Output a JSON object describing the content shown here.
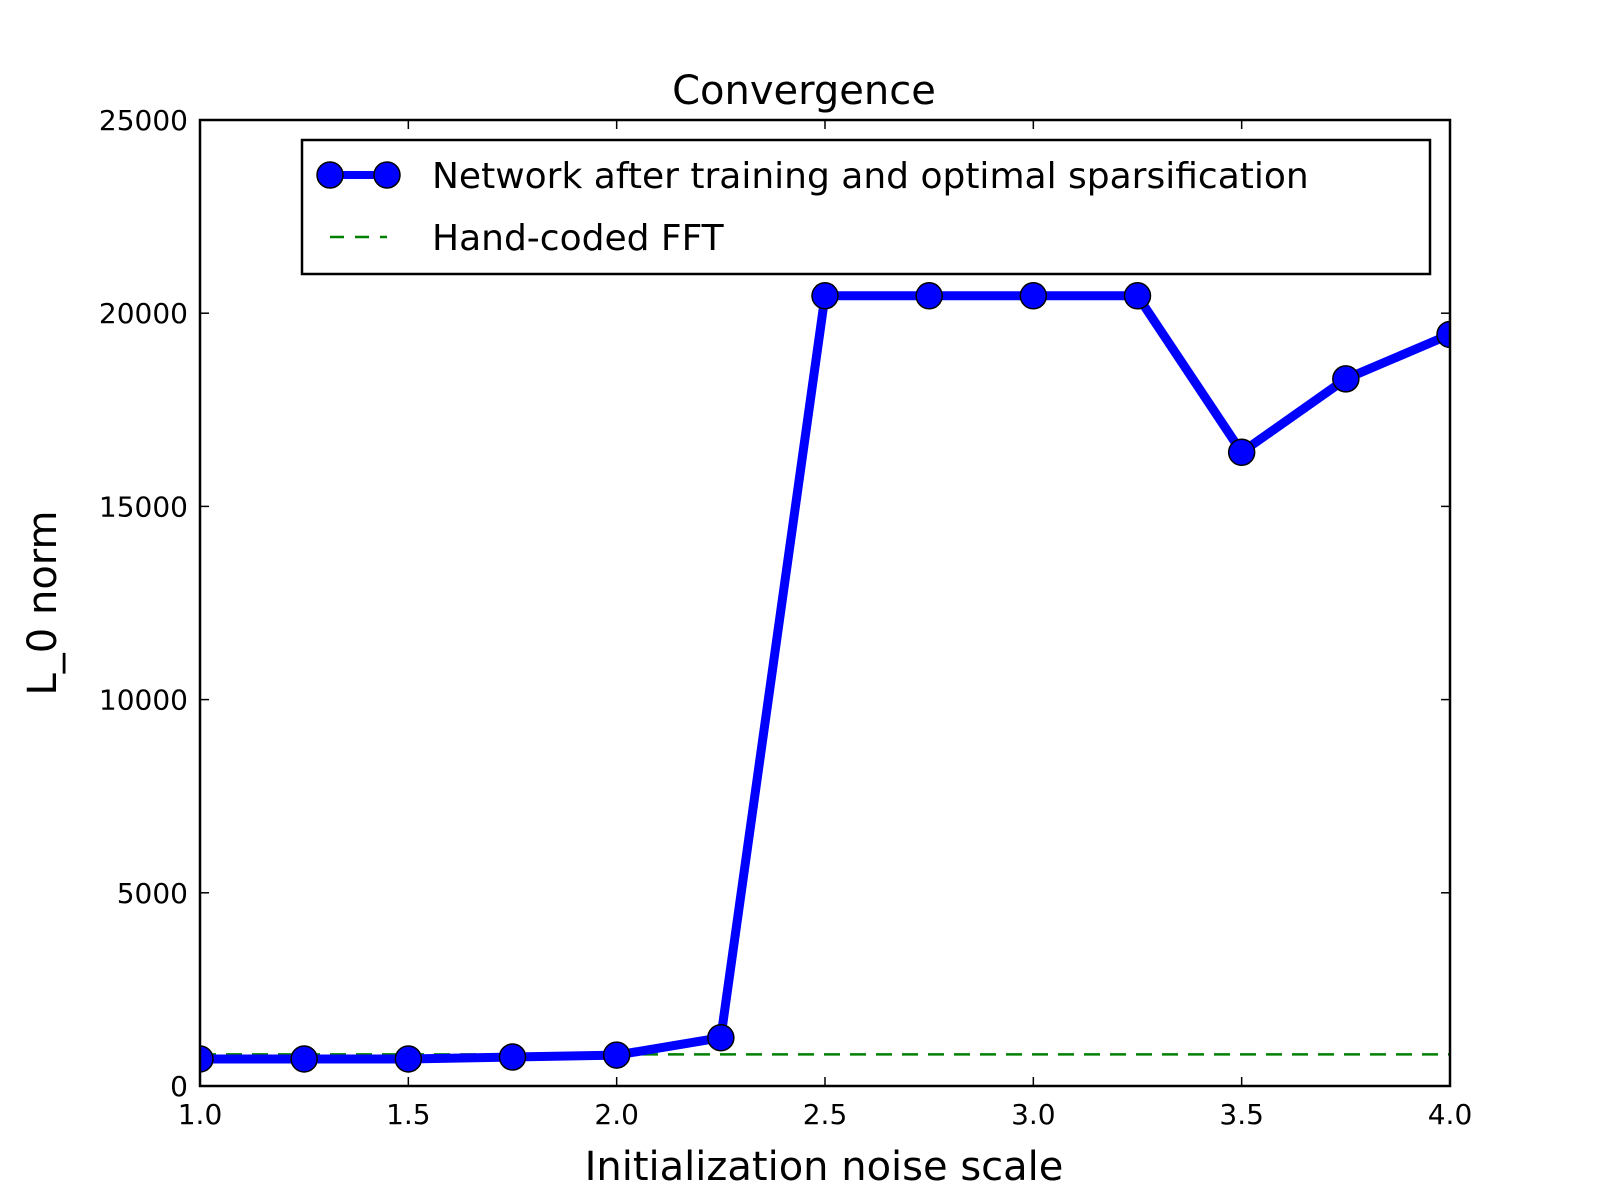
{
  "chart_data": {
    "type": "line",
    "title": "Convergence",
    "xlabel": "Initialization noise scale",
    "ylabel": "L_0 norm",
    "xlim": [
      1.0,
      4.0
    ],
    "ylim": [
      0,
      25000
    ],
    "xticks": [
      "1.0",
      "1.5",
      "2.0",
      "2.5",
      "3.0",
      "3.5",
      "4.0"
    ],
    "yticks": [
      "0",
      "5000",
      "10000",
      "15000",
      "20000",
      "25000"
    ],
    "grid": false,
    "legend_position": "top-right",
    "series": [
      {
        "name": "Network after training and optimal sparsification",
        "color": "#0000ff",
        "style": "solid-with-markers",
        "x": [
          1.0,
          1.25,
          1.5,
          1.75,
          2.0,
          2.25,
          2.5,
          2.75,
          3.0,
          3.25,
          3.5,
          3.75,
          4.0
        ],
        "y": [
          700,
          700,
          700,
          750,
          800,
          1250,
          20450,
          20450,
          20450,
          20450,
          16400,
          18300,
          19450
        ]
      },
      {
        "name": "Hand-coded FFT",
        "color": "#008000",
        "style": "dashed",
        "x": [
          1.0,
          4.0
        ],
        "y": [
          820,
          820
        ]
      }
    ]
  }
}
